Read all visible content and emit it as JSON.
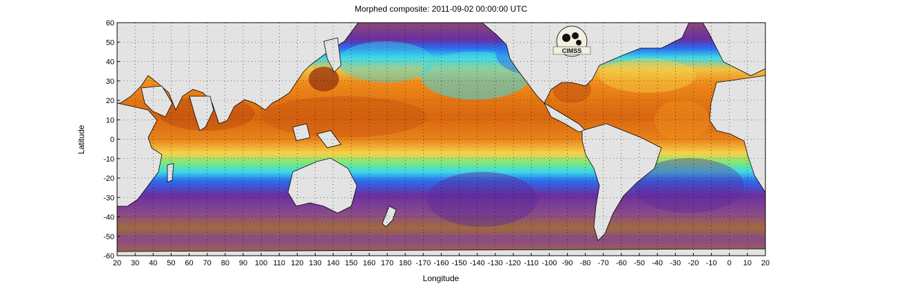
{
  "title": "Morphed composite: 2011-09-02 00:00:00 UTC",
  "xlabel": "Longitude",
  "ylabel": "Latitude",
  "logo_text": "CIMSS",
  "x_ticks": [
    "20",
    "30",
    "40",
    "50",
    "60",
    "70",
    "80",
    "90",
    "100",
    "110",
    "120",
    "130",
    "140",
    "150",
    "160",
    "170",
    "180",
    "-170",
    "-160",
    "-150",
    "-140",
    "-130",
    "-120",
    "-110",
    "-100",
    "-90",
    "-80",
    "-70",
    "-60",
    "-50",
    "-40",
    "-30",
    "-20",
    "-10",
    "0",
    "10",
    "20"
  ],
  "y_ticks": [
    "60",
    "50",
    "40",
    "30",
    "20",
    "10",
    "0",
    "-10",
    "-20",
    "-30",
    "-40",
    "-50",
    "-60"
  ],
  "colors": {
    "land": "#e3e3e3",
    "very_dry": "#a06a3c",
    "dry_purple": "#6b2fa0",
    "blue": "#2a6cf0",
    "cyan": "#3fd9e6",
    "green": "#7ee87a",
    "yellow": "#f6d24a",
    "orange": "#ee8a1a",
    "dark_orange": "#c9580f",
    "brown_red": "#9b3a10"
  }
}
